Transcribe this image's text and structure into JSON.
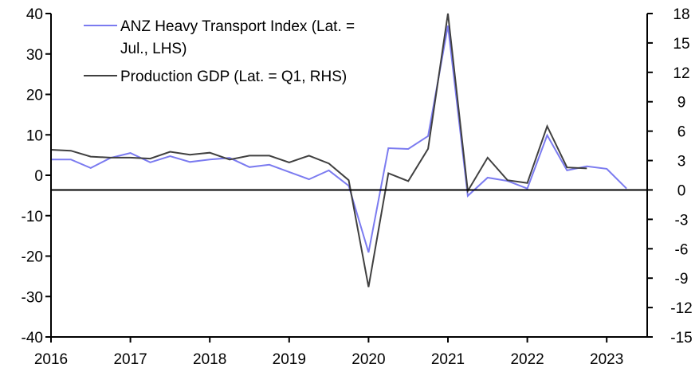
{
  "chart_data": {
    "type": "line",
    "title": "",
    "xlabel": "",
    "ylabel_left": "",
    "ylabel_right": "",
    "x_ticks": [
      "2016",
      "2017",
      "2018",
      "2019",
      "2020",
      "2021",
      "2022",
      "2023"
    ],
    "x_range": [
      2016,
      2023.6
    ],
    "y_left": {
      "range": [
        -40,
        40
      ],
      "ticks": [
        "40",
        "30",
        "20",
        "10",
        "0",
        "-10",
        "-20",
        "-30",
        "-40"
      ]
    },
    "y_right": {
      "range": [
        -15,
        18
      ],
      "ticks": [
        "18",
        "15",
        "12",
        "9",
        "6",
        "3",
        "0",
        "-3",
        "-6",
        "-9",
        "-12",
        "-15"
      ]
    },
    "zero_line": {
      "axis": "right",
      "value": 0
    },
    "legend": {
      "placement": "top-left",
      "entries": [
        {
          "line1": "ANZ Heavy Transport Index (Lat. =",
          "line2": "Jul., LHS)",
          "color": "#7b7bf0"
        },
        {
          "line1": "Production GDP (Lat. = Q1, RHS)",
          "line2": "",
          "color": "#404040"
        }
      ]
    },
    "series": [
      {
        "name": "ANZ Heavy Transport Index (Lat. = Jul., LHS)",
        "axis": "left",
        "color": "#7b7bf0",
        "x": [
          2016.0,
          2016.25,
          2016.5,
          2016.75,
          2017.0,
          2017.25,
          2017.5,
          2017.75,
          2018.0,
          2018.25,
          2018.5,
          2018.75,
          2019.0,
          2019.25,
          2019.5,
          2019.75,
          2020.0,
          2020.25,
          2020.5,
          2020.75,
          2021.0,
          2021.25,
          2021.5,
          2021.75,
          2022.0,
          2022.25,
          2022.5,
          2022.75,
          2023.0,
          2023.25
        ],
        "values": [
          3.9,
          3.9,
          1.8,
          4.3,
          5.5,
          3.2,
          4.7,
          3.3,
          3.9,
          4.3,
          2.0,
          2.6,
          0.8,
          -1.0,
          1.2,
          -2.6,
          -19.1,
          6.7,
          6.5,
          9.7,
          37.0,
          -5.1,
          -0.6,
          -1.4,
          -3.3,
          9.9,
          1.2,
          2.2,
          1.6,
          -3.3
        ]
      },
      {
        "name": "Production GDP (Lat. = Q1, RHS)",
        "axis": "right",
        "color": "#404040",
        "x": [
          2016.0,
          2016.25,
          2016.5,
          2016.75,
          2017.0,
          2017.25,
          2017.5,
          2017.75,
          2018.0,
          2018.25,
          2018.5,
          2018.75,
          2019.0,
          2019.25,
          2019.5,
          2019.75,
          2020.0,
          2020.25,
          2020.5,
          2020.75,
          2021.0,
          2021.25,
          2021.5,
          2021.75,
          2022.0,
          2022.25,
          2022.5,
          2022.75
        ],
        "values": [
          4.1,
          4.0,
          3.4,
          3.3,
          3.3,
          3.2,
          3.9,
          3.6,
          3.8,
          3.1,
          3.5,
          3.5,
          2.8,
          3.5,
          2.7,
          1.0,
          -9.9,
          1.7,
          0.9,
          4.2,
          18.0,
          -0.1,
          3.3,
          1.0,
          0.7,
          6.5,
          2.3,
          2.2
        ]
      }
    ]
  }
}
